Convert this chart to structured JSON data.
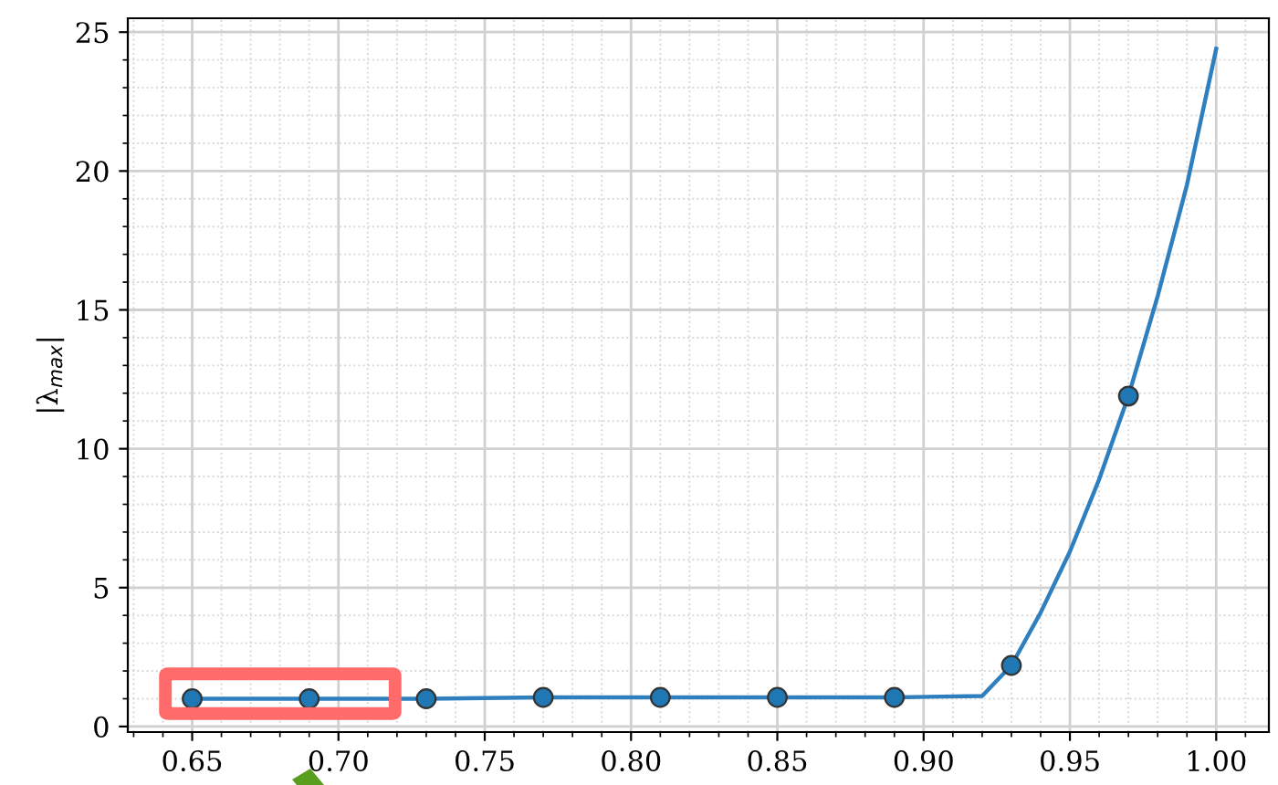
{
  "chart_data": {
    "type": "line",
    "ylabel": "|λ$_{max}$|",
    "series": [
      {
        "color": "#2f7fbf",
        "x": [
          0.65,
          0.69,
          0.73,
          0.77,
          0.81,
          0.85,
          0.89,
          0.92,
          0.93,
          0.94,
          0.95,
          0.96,
          0.97,
          0.98,
          0.99,
          1.0
        ],
        "values": [
          1.0,
          1.0,
          1.0,
          1.05,
          1.05,
          1.05,
          1.05,
          1.1,
          2.2,
          4.1,
          6.3,
          8.9,
          11.9,
          15.5,
          19.5,
          24.4
        ]
      },
      {
        "type": "scatter",
        "color": "#1f77b4",
        "marker": "circle",
        "x": [
          0.65,
          0.69,
          0.73,
          0.77,
          0.81,
          0.85,
          0.89,
          0.93,
          0.97
        ],
        "values": [
          1.0,
          1.0,
          1.0,
          1.05,
          1.05,
          1.05,
          1.05,
          2.2,
          11.9
        ]
      }
    ],
    "xlim": [
      0.628,
      1.018
    ],
    "xticks": [
      {
        "value": 0.65,
        "label": "0.65"
      },
      {
        "value": 0.7,
        "label": "0.70"
      },
      {
        "value": 0.75,
        "label": "0.75"
      },
      {
        "value": 0.8,
        "label": "0.80"
      },
      {
        "value": 0.85,
        "label": "0.85"
      },
      {
        "value": 0.9,
        "label": "0.90"
      },
      {
        "value": 0.95,
        "label": "0.95"
      },
      {
        "value": 1.0,
        "label": "1.00"
      }
    ],
    "ylim": [
      -0.2,
      25.5
    ],
    "yticks": [
      0,
      5,
      10,
      15,
      20,
      25
    ],
    "grid": true
  }
}
